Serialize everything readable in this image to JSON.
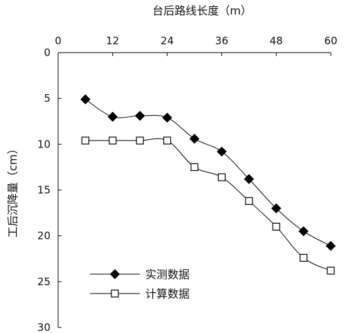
{
  "chart_data": {
    "type": "line",
    "title": "",
    "xlabel": "台后路线长度（m）",
    "ylabel": "工后沉降量（cm）",
    "xlim": [
      0,
      60
    ],
    "ylim": [
      0,
      30
    ],
    "y_inverted": true,
    "x_ticks": [
      0,
      12,
      24,
      36,
      48,
      60
    ],
    "y_ticks": [
      0,
      5,
      10,
      15,
      20,
      25,
      30
    ],
    "x_axis_position": "top",
    "grid": false,
    "legend_position": "bottom-left",
    "series": [
      {
        "name": "实测数据",
        "marker": "filled-diamond",
        "color": "#000000",
        "points": [
          [
            6,
            5.1
          ],
          [
            12,
            7.0
          ],
          [
            18,
            6.9
          ],
          [
            24,
            7.1
          ],
          [
            30,
            9.4
          ],
          [
            36,
            10.8
          ],
          [
            42,
            13.8
          ],
          [
            48,
            17.0
          ],
          [
            54,
            19.5
          ],
          [
            60,
            21.1
          ]
        ]
      },
      {
        "name": "计算数据",
        "marker": "open-square",
        "color": "#000000",
        "points": [
          [
            6,
            9.6
          ],
          [
            12,
            9.6
          ],
          [
            18,
            9.6
          ],
          [
            24,
            9.6
          ],
          [
            30,
            12.5
          ],
          [
            36,
            13.6
          ],
          [
            42,
            16.2
          ],
          [
            48,
            19.0
          ],
          [
            54,
            22.4
          ],
          [
            60,
            23.8
          ]
        ]
      }
    ]
  }
}
